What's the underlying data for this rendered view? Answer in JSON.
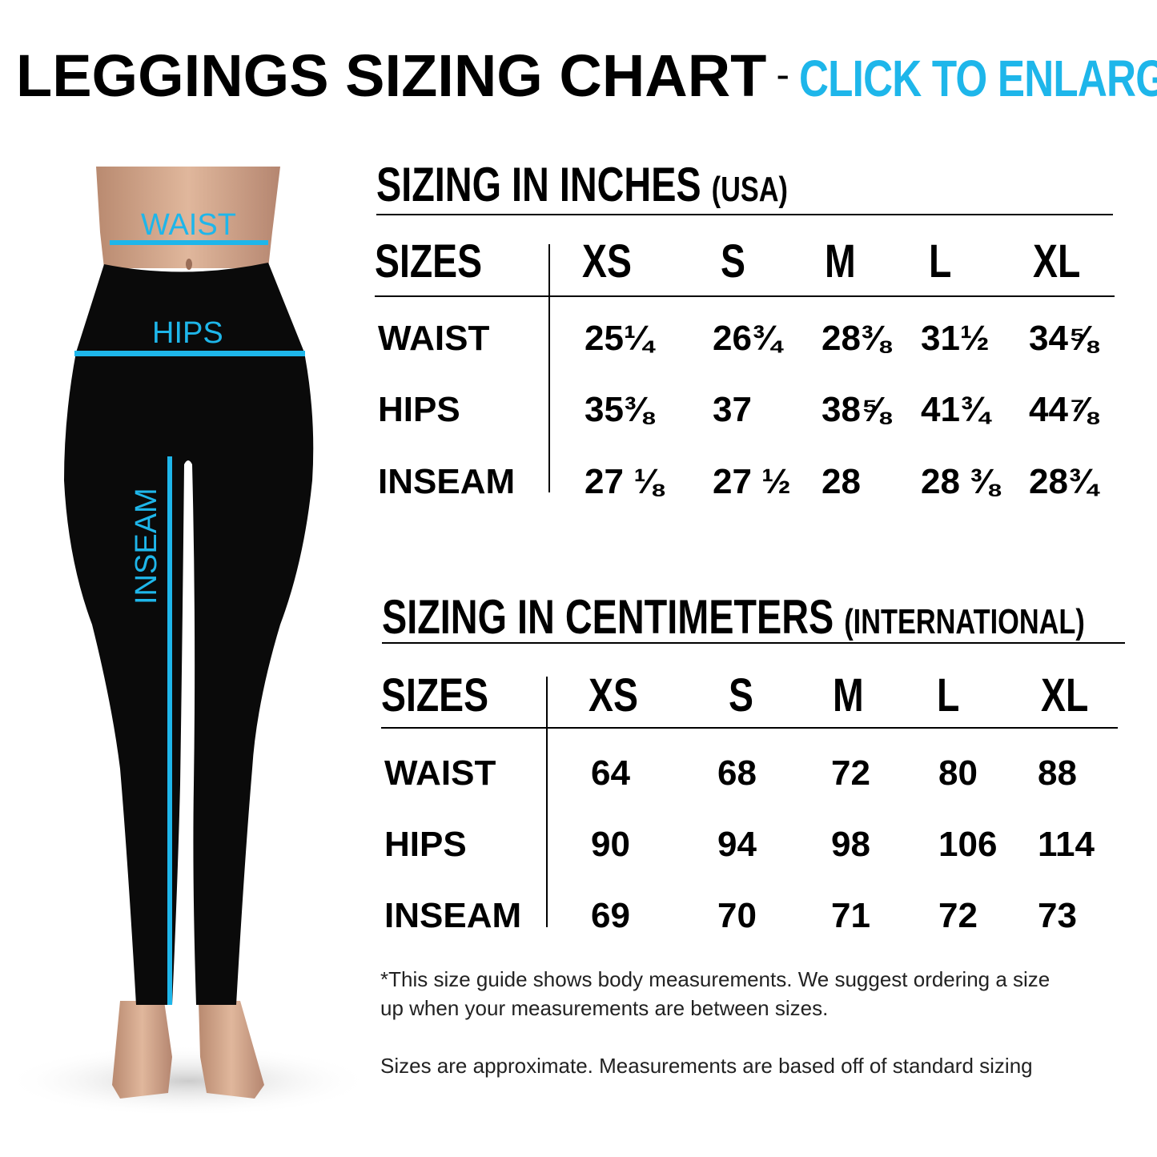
{
  "title": {
    "main": "LEGGINGS SIZING CHART",
    "separator": "-",
    "cta": "CLICK TO ENLARGE",
    "cta_color": "#1eb6ea"
  },
  "figure": {
    "labels": {
      "waist": "WAIST",
      "hips": "HIPS",
      "inseam": "INSEAM"
    },
    "line_color": "#1eb6ea"
  },
  "inches": {
    "heading": "SIZING IN INCHES",
    "heading_sub": "(USA)",
    "sizes_label": "SIZES",
    "sizes": [
      "XS",
      "S",
      "M",
      "L",
      "XL"
    ],
    "rows": [
      {
        "label": "WAIST",
        "values": [
          "25¼",
          "26¾",
          "28⅜",
          "31½",
          "34⅝"
        ]
      },
      {
        "label": "HIPS",
        "values": [
          "35⅜",
          "37",
          "38⅝",
          "41¾",
          "44⅞"
        ]
      },
      {
        "label": "INSEAM",
        "values": [
          "27 ⅛",
          "27 ½",
          "28",
          "28 ⅜",
          "28¾"
        ]
      }
    ]
  },
  "centimeters": {
    "heading": "SIZING IN CENTIMETERS",
    "heading_sub": "(INTERNATIONAL)",
    "sizes_label": "SIZES",
    "sizes": [
      "XS",
      "S",
      "M",
      "L",
      "XL"
    ],
    "rows": [
      {
        "label": "WAIST",
        "values": [
          "64",
          "68",
          "72",
          "80",
          "88"
        ]
      },
      {
        "label": "HIPS",
        "values": [
          "90",
          "94",
          "98",
          "106",
          "114"
        ]
      },
      {
        "label": "INSEAM",
        "values": [
          "69",
          "70",
          "71",
          "72",
          "73"
        ]
      }
    ]
  },
  "notes": {
    "line1": "*This size guide shows body measurements. We suggest ordering a size",
    "line2": "up when your measurements are between sizes.",
    "line3": "Sizes are approximate. Measurements are based off of standard sizing"
  }
}
